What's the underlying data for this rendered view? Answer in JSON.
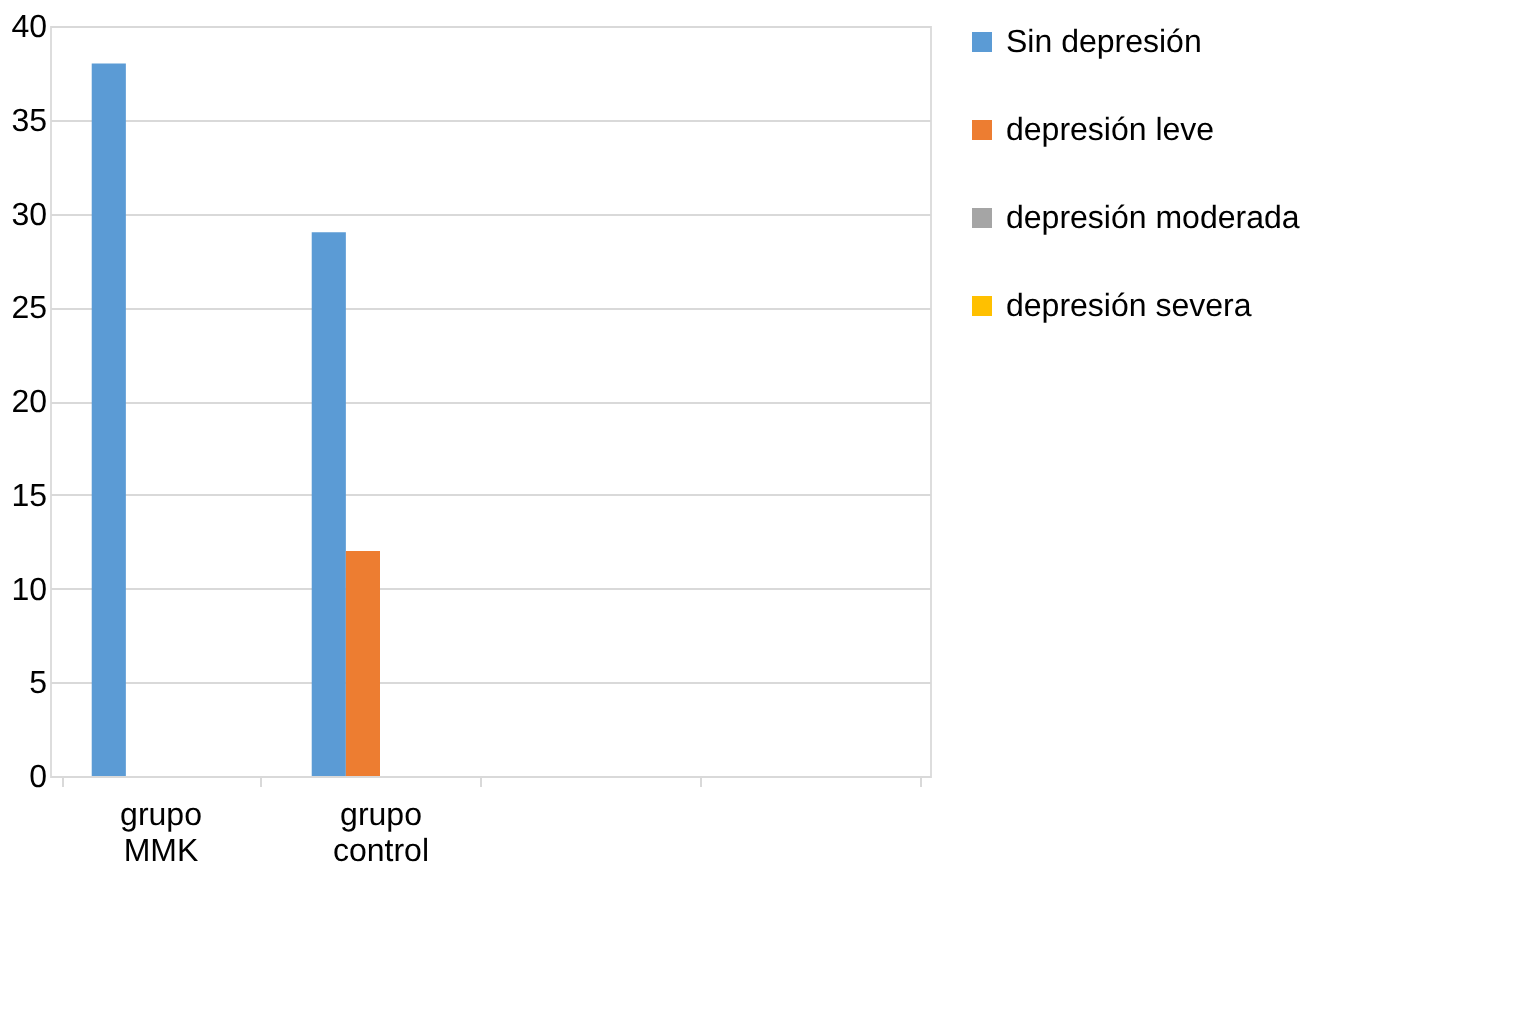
{
  "chart_data": {
    "type": "bar",
    "categories": [
      "grupo MMK",
      "grupo control",
      null,
      null
    ],
    "series": [
      {
        "name": "Sin depresión",
        "color": "#5b9bd5",
        "values": [
          38,
          29,
          null,
          null
        ]
      },
      {
        "name": "depresión leve",
        "color": "#ed7d31",
        "values": [
          null,
          12,
          null,
          null
        ]
      },
      {
        "name": "depresión moderada",
        "color": "#a5a5a5",
        "values": [
          null,
          null,
          null,
          null
        ]
      },
      {
        "name": "depresión severa",
        "color": "#ffc000",
        "values": [
          null,
          null,
          null,
          null
        ]
      }
    ],
    "ylim": [
      0,
      40
    ],
    "yticks": [
      0,
      5,
      10,
      15,
      20,
      25,
      30,
      35,
      40
    ],
    "grid": "y",
    "legend": "right"
  }
}
